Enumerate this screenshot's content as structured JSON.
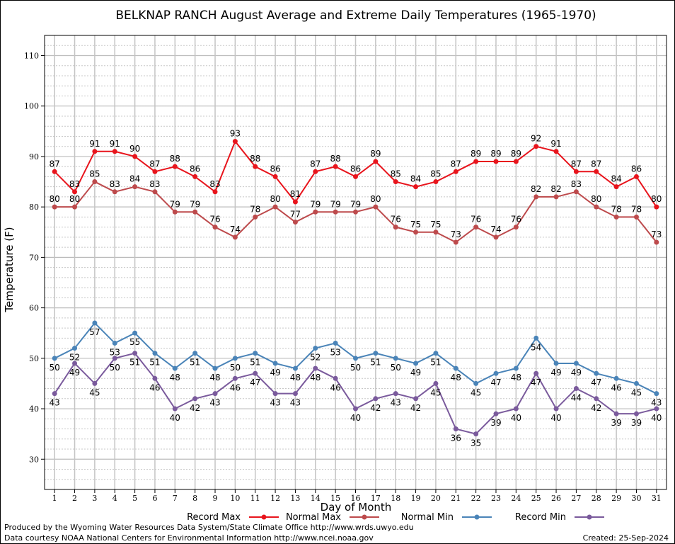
{
  "chart_data": {
    "type": "line",
    "title": "BELKNAP RANCH August Average and Extreme Daily Temperatures (1965-1970)",
    "xlabel": "Day of Month",
    "ylabel": "Temperature (F)",
    "ylim": [
      24,
      114
    ],
    "yticks": [
      30,
      40,
      50,
      60,
      70,
      80,
      90,
      100,
      110
    ],
    "x": [
      1,
      2,
      3,
      4,
      5,
      6,
      7,
      8,
      9,
      10,
      11,
      12,
      13,
      14,
      15,
      16,
      17,
      18,
      19,
      20,
      21,
      22,
      23,
      24,
      25,
      26,
      27,
      28,
      29,
      30,
      31
    ],
    "grid": true,
    "legend_placement": "bottom",
    "series": [
      {
        "name": "Record Max",
        "color": "#e8141c",
        "values": [
          87,
          83,
          91,
          91,
          90,
          87,
          88,
          86,
          83,
          93,
          88,
          86,
          81,
          87,
          88,
          86,
          89,
          85,
          84,
          85,
          87,
          89,
          89,
          89,
          92,
          91,
          87,
          87,
          84,
          86,
          80
        ]
      },
      {
        "name": "Normal Max",
        "color": "#bd4a4c",
        "values": [
          80,
          80,
          85,
          83,
          84,
          83,
          79,
          79,
          76,
          74,
          78,
          80,
          77,
          79,
          79,
          79,
          80,
          76,
          75,
          75,
          73,
          76,
          74,
          76,
          82,
          82,
          83,
          80,
          78,
          78,
          73
        ]
      },
      {
        "name": "Normal Min",
        "color": "#4a84b8",
        "values": [
          50,
          52,
          57,
          53,
          55,
          51,
          48,
          51,
          48,
          50,
          51,
          49,
          48,
          52,
          53,
          50,
          51,
          50,
          49,
          51,
          48,
          45,
          47,
          48,
          54,
          49,
          49,
          47,
          46,
          45,
          43
        ]
      },
      {
        "name": "Record Min",
        "color": "#7a5a9c",
        "values": [
          43,
          49,
          45,
          50,
          51,
          46,
          40,
          42,
          43,
          46,
          47,
          43,
          43,
          48,
          46,
          40,
          42,
          43,
          42,
          45,
          36,
          35,
          39,
          40,
          47,
          40,
          44,
          42,
          39,
          39,
          40
        ]
      }
    ]
  },
  "footer": {
    "line1": "Produced by the Wyoming Water Resources Data System/State Climate Office http://www.wrds.uwyo.edu",
    "line2": "Data courtesy NOAA National Centers for Environmental Information http://www.ncei.noaa.gov",
    "created": "Created:  25-Sep-2024"
  }
}
